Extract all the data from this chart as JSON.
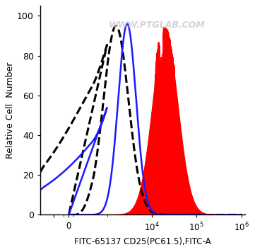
{
  "xlabel": "FITC-65137 CD25(PC61.5),FITC-A",
  "ylabel": "Relative Cell  Number",
  "ylim": [
    0,
    105
  ],
  "background_color": "#ffffff",
  "watermark": "WWW.PTGLAB.COM",
  "symlog_linthresh": 500,
  "symlog_linscale": 0.5,
  "xlim": [
    -600,
    1200000
  ],
  "curves": {
    "dashed": {
      "color": "#000000",
      "linestyle": "--",
      "linewidth": 2.2,
      "peak_x_log": 3.2,
      "peak_y": 95,
      "log_sigma": 0.28
    },
    "blue": {
      "color": "#1a1aff",
      "linestyle": "-",
      "linewidth": 1.8,
      "peak_x_log": 3.45,
      "peak_y": 96,
      "log_sigma": 0.2
    },
    "red": {
      "color": "#ff0000",
      "peak1_x_log": 4.3,
      "peak1_y": 91,
      "peak2_x_log": 4.15,
      "peak2_y": 83,
      "peak3_x_log": 4.22,
      "peak3_y": 78,
      "log_sigma": 0.28,
      "log_sigma2": 0.12
    }
  },
  "yticks": [
    0,
    20,
    40,
    60,
    80,
    100
  ],
  "xtick_positions": [
    -300,
    0,
    10000,
    100000,
    1000000
  ],
  "xtick_labels": [
    "",
    "0",
    "$10^{4}$",
    "$10^{5}$",
    "$10^{6}$"
  ]
}
